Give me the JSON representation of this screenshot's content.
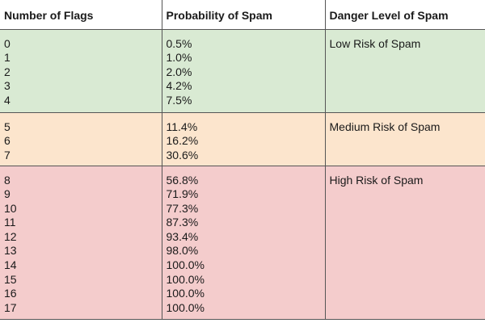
{
  "table": {
    "headers": [
      "Number of Flags",
      "Probability of Spam",
      "Danger Level of Spam"
    ],
    "groups": [
      {
        "flags": [
          "0",
          "1",
          "2",
          "3",
          "4"
        ],
        "probabilities": [
          "0.5%",
          "1.0%",
          "2.0%",
          "4.2%",
          "7.5%"
        ],
        "danger": "Low Risk of Spam",
        "color": "#d9ead3"
      },
      {
        "flags": [
          "5",
          "6",
          "7"
        ],
        "probabilities": [
          "11.4%",
          "16.2%",
          "30.6%"
        ],
        "danger": "Medium Risk of Spam",
        "color": "#fce5cd"
      },
      {
        "flags": [
          "8",
          "9",
          "10",
          "11",
          "12",
          "13",
          "14",
          "15",
          "16",
          "17"
        ],
        "probabilities": [
          "56.8%",
          "71.9%",
          "77.3%",
          "87.3%",
          "93.4%",
          "98.0%",
          "100.0%",
          "100.0%",
          "100.0%",
          "100.0%"
        ],
        "danger": "High Risk of Spam",
        "color": "#f4cccc"
      }
    ]
  }
}
